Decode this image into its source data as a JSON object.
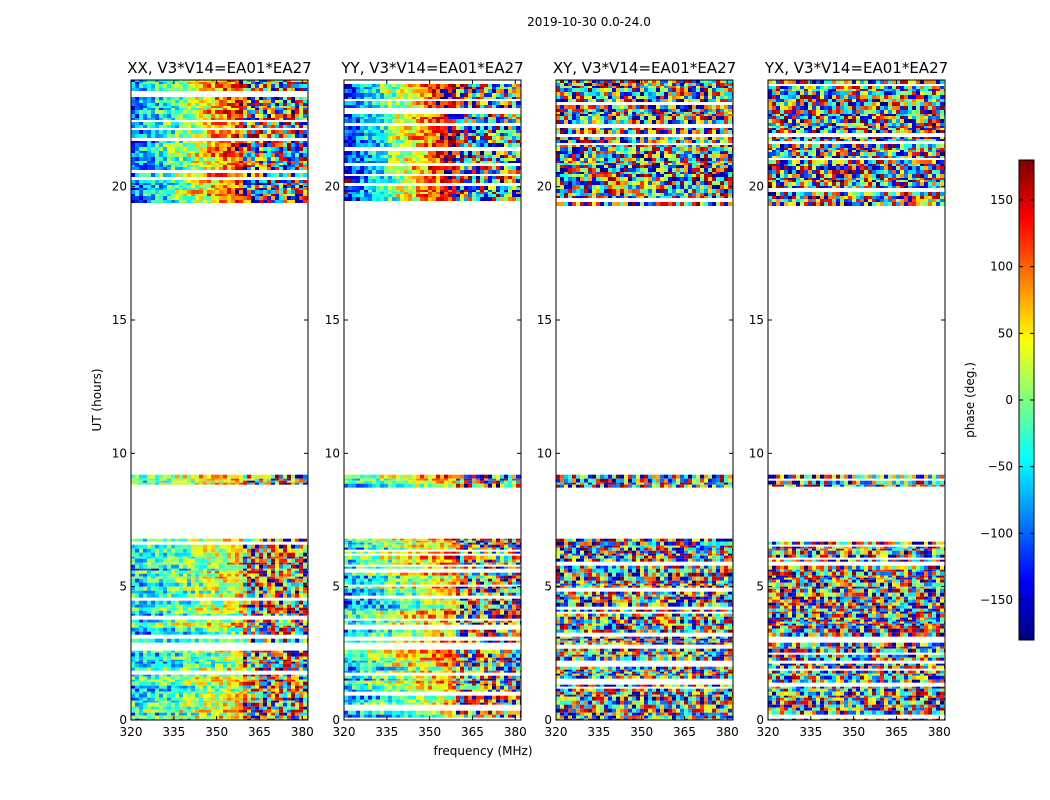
{
  "chart_data": {
    "type": "heatmap",
    "suptitle": "2019-10-30 0.0-24.0",
    "xlabel": "frequency (MHz)",
    "ylabel": "UT (hours)",
    "xlim": [
      320,
      382
    ],
    "ylim": [
      0,
      24
    ],
    "xticks": [
      320,
      335,
      350,
      365,
      380
    ],
    "yticks": [
      0,
      5,
      10,
      15,
      20
    ],
    "panels": [
      {
        "name": "XX",
        "title": "XX, V3*V14=EA01*EA27",
        "coherent": true
      },
      {
        "name": "YY",
        "title": "YY, V3*V14=EA01*EA27",
        "coherent": true
      },
      {
        "name": "XY",
        "title": "XY, V3*V14=EA01*EA27",
        "coherent": false
      },
      {
        "name": "YX",
        "title": "YX, V3*V14=EA01*EA27",
        "coherent": false
      }
    ],
    "data_time_ranges_hours": [
      [
        0.0,
        6.8
      ],
      [
        8.8,
        9.2
      ],
      [
        19.4,
        24.0
      ]
    ],
    "colorbar": {
      "label": "phase (deg.)",
      "range": [
        -180,
        180
      ],
      "ticks": [
        -150,
        -100,
        -50,
        0,
        50,
        100,
        150
      ],
      "tick_labels": [
        "−150",
        "−100",
        "−50",
        "0",
        "50",
        "100",
        "150"
      ],
      "colormap": [
        "#00007f",
        "#0000ff",
        "#007fff",
        "#00ffff",
        "#7fff7f",
        "#ffff00",
        "#ff7f00",
        "#ff0000",
        "#7f0000"
      ]
    }
  }
}
